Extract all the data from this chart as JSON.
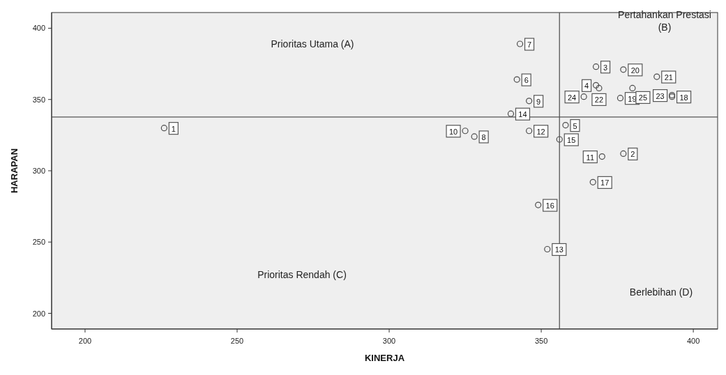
{
  "chart_data": {
    "type": "scatter",
    "xlabel": "KINERJA",
    "ylabel": "HARAPAN",
    "x": [
      226,
      377,
      368,
      368,
      358,
      342,
      343,
      328,
      346,
      325,
      370,
      346,
      352,
      340,
      356,
      349,
      367,
      393,
      376,
      377,
      388,
      369,
      393,
      364,
      380
    ],
    "series": [
      {
        "color": "#4d4d4d",
        "values": [
          330,
          312,
          373,
          360,
          332,
          364,
          389,
          324,
          349,
          328,
          310,
          328,
          245,
          340,
          322,
          276,
          292,
          352,
          351,
          371,
          366,
          358,
          353,
          352,
          358
        ]
      }
    ],
    "xlim": [
      189,
      408
    ],
    "ylim": [
      189,
      411
    ],
    "xticks": [
      200,
      250,
      300,
      350,
      400
    ],
    "yticks": [
      200,
      250,
      300,
      350,
      400
    ],
    "grid": false,
    "legend": false,
    "marker": "circle",
    "ref_lines": [
      {
        "axis": "x",
        "value": 356,
        "color": "#555555"
      },
      {
        "axis": "y",
        "value": 337.7,
        "color": "#555555"
      }
    ],
    "annotations": [
      "Prioritas Utama (A)",
      "Pertahankan Prestasi (B)",
      "Prioritas Rendah (C)",
      "Berlebihan (D)",
      {
        "text": "1",
        "x": 226,
        "y": 330
      },
      {
        "text": "2",
        "x": 377,
        "y": 312
      },
      {
        "text": "3",
        "x": 368,
        "y": 373
      },
      {
        "text": "4",
        "x": 368,
        "y": 360
      },
      {
        "text": "5",
        "x": 358,
        "y": 332
      },
      {
        "text": "6",
        "x": 342,
        "y": 364
      },
      {
        "text": "7",
        "x": 343,
        "y": 389
      },
      {
        "text": "8",
        "x": 328,
        "y": 324
      },
      {
        "text": "9",
        "x": 346,
        "y": 349
      },
      {
        "text": "10",
        "x": 325,
        "y": 328
      },
      {
        "text": "11",
        "x": 370,
        "y": 310
      },
      {
        "text": "12",
        "x": 346,
        "y": 328
      },
      {
        "text": "13",
        "x": 352,
        "y": 245
      },
      {
        "text": "14",
        "x": 340,
        "y": 340
      },
      {
        "text": "15",
        "x": 356,
        "y": 322
      },
      {
        "text": "16",
        "x": 349,
        "y": 276
      },
      {
        "text": "17",
        "x": 367,
        "y": 292
      },
      {
        "text": "18",
        "x": 393,
        "y": 352
      },
      {
        "text": "19",
        "x": 376,
        "y": 351
      },
      {
        "text": "20",
        "x": 377,
        "y": 371
      },
      {
        "text": "21",
        "x": 388,
        "y": 366
      },
      {
        "text": "22",
        "x": 369,
        "y": 358
      },
      {
        "text": "23",
        "x": 393,
        "y": 353
      },
      {
        "text": "24",
        "x": 364,
        "y": 352
      },
      {
        "text": "25",
        "x": 380,
        "y": 358
      }
    ]
  }
}
